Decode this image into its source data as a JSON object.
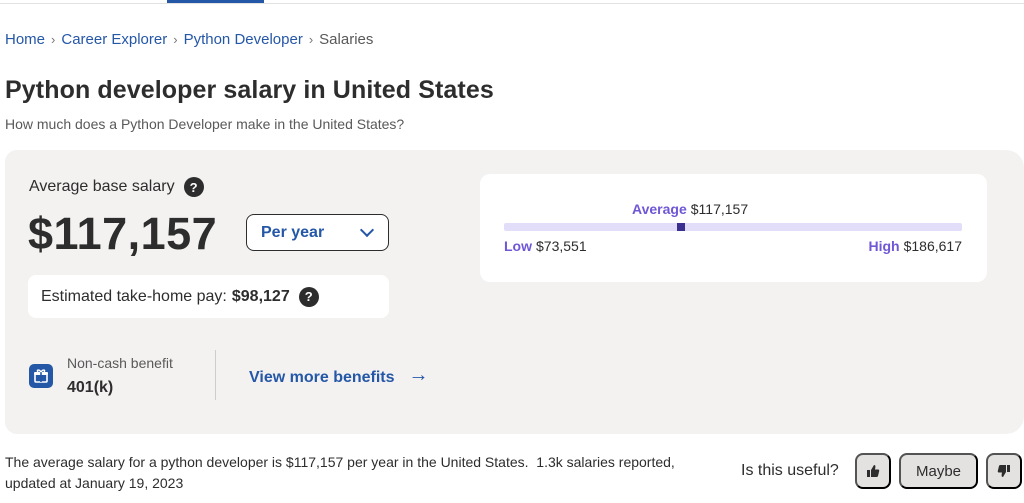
{
  "breadcrumb": {
    "items": [
      "Home",
      "Career Explorer",
      "Python Developer"
    ],
    "current": "Salaries",
    "separator": "›"
  },
  "header": {
    "title": "Python developer salary in United States",
    "subtitle": "How much does a Python Developer make in the United States?"
  },
  "salary_card": {
    "average_label": "Average base salary",
    "help_glyph": "?",
    "amount": "$117,157",
    "period_select": "Per year",
    "takehome_label": "Estimated take-home pay:",
    "takehome_value": "$98,127",
    "benefit_label": "Non-cash benefit",
    "benefit_value": "401(k)",
    "more_benefits": "View more benefits",
    "arrow_glyph": "→"
  },
  "range": {
    "average_key": "Average",
    "average_value": "$117,157",
    "low_key": "Low",
    "low_value": "$73,551",
    "high_key": "High",
    "high_value": "$186,617",
    "low_num": 73551,
    "avg_num": 117157,
    "high_num": 186617,
    "track_color": "#e2defa",
    "marker_color": "#3b2f8f"
  },
  "footer": {
    "summary_part1": "The average salary for a python developer is $117,157 per year in the United States.",
    "summary_part2": "1.3k salaries reported, updated at January 19, 2023",
    "useful_question": "Is this useful?",
    "maybe_label": "Maybe"
  },
  "colors": {
    "link": "#2557a7",
    "accent_purple": "#6f57d6",
    "card_bg": "#f3f2f1"
  },
  "icons": {
    "help": "question-circle-icon",
    "benefit": "gift-icon",
    "chevron": "chevron-down-icon",
    "arrow": "arrow-right-icon",
    "thumbs_up": "thumbs-up-icon",
    "thumbs_down": "thumbs-down-icon"
  }
}
